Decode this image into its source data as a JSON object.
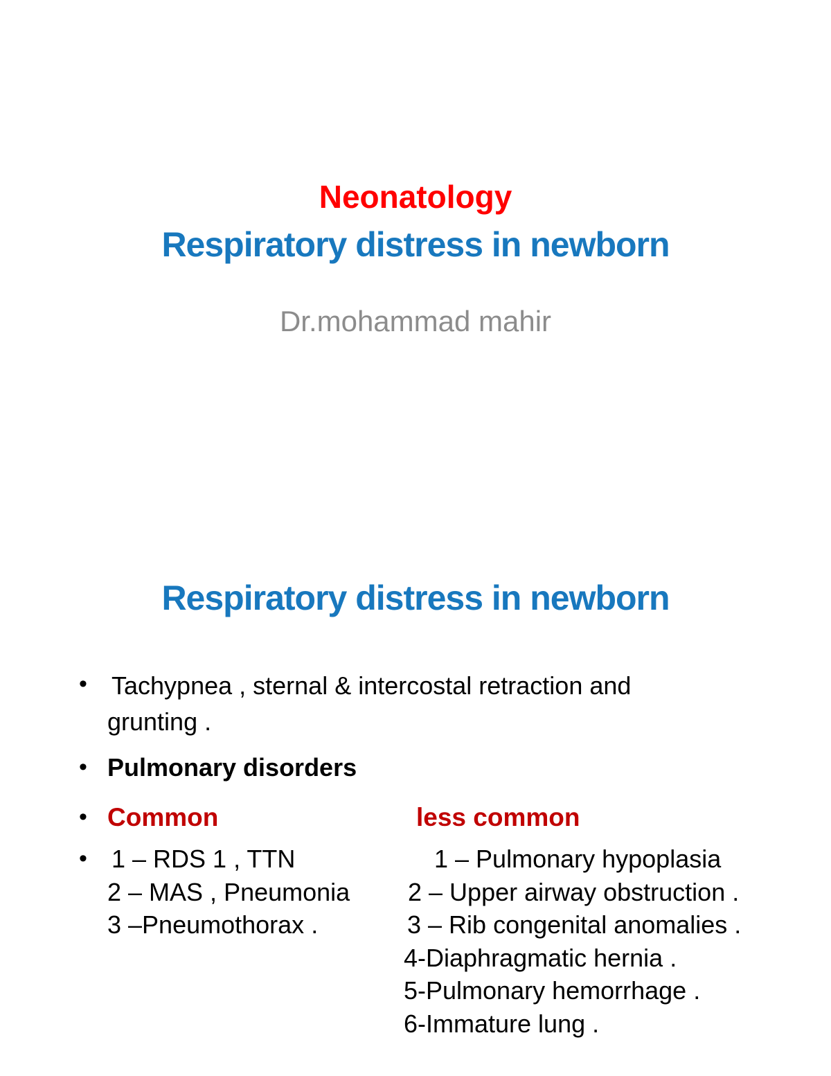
{
  "glyphs": {
    "bullet": "•"
  },
  "colors": {
    "title_red": "#ff0000",
    "title_blue": "#1878be",
    "heading_dark_red": "#c00000",
    "subtitle_gray": "#8c8c8c",
    "body_text": "#000000",
    "background": "#ffffff"
  },
  "slide1": {
    "title_red": "Neonatology",
    "title_blue": "Respiratory distress in newborn",
    "subtitle": "Dr.mohammad mahir"
  },
  "slide2": {
    "title": "Respiratory distress in newborn",
    "bullet1_line1": "Tachypnea , sternal & intercostal retraction and",
    "bullet1_line2": "grunting .",
    "bullet2": "Pulmonary disorders",
    "bullet3_left": "Common",
    "bullet3_right": "less common",
    "common_list": [
      "1 – RDS 1 , TTN",
      "2 – MAS , Pneumonia",
      "3 –Pneumothorax ."
    ],
    "less_common_list": [
      "1 – Pulmonary hypoplasia",
      "2 – Upper airway obstruction .",
      "3 – Rib congenital anomalies .",
      "4-Diaphragmatic hernia .",
      "5-Pulmonary hemorrhage .",
      "6-Immature lung ."
    ]
  }
}
